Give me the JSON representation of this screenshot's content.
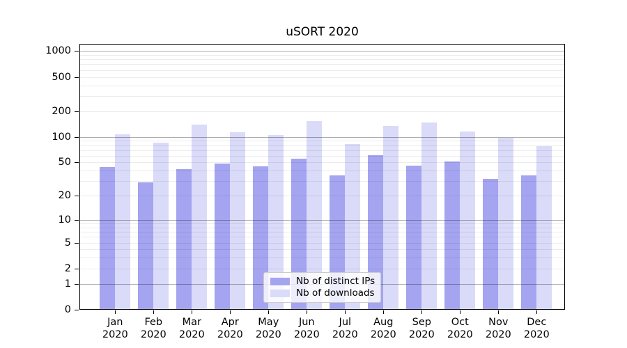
{
  "chart_data": {
    "type": "bar",
    "title": "uSORT 2020",
    "xlabel": "",
    "ylabel": "",
    "yscale": "log1p (symlog-like, 0 at baseline)",
    "ylim": [
      0,
      1210
    ],
    "y_ticks": [
      0,
      1,
      2,
      5,
      10,
      20,
      50,
      100,
      200,
      500,
      1000
    ],
    "grid_major_values": [
      1,
      10,
      100,
      1000
    ],
    "grid": "horizontal major + log-minor lines, drawn over bars",
    "legend_position": "lower center inside plot",
    "categories": [
      "Jan 2020",
      "Feb 2020",
      "Mar 2020",
      "Apr 2020",
      "May 2020",
      "Jun 2020",
      "Jul 2020",
      "Aug 2020",
      "Sep 2020",
      "Oct 2020",
      "Nov 2020",
      "Dec 2020"
    ],
    "series": [
      {
        "name": "Nb of distinct IPs",
        "key": "distinct-ips",
        "color": "#a4a4f1",
        "values": [
          44,
          29,
          42,
          49,
          45,
          55,
          35,
          61,
          46,
          51,
          32,
          35
        ]
      },
      {
        "name": "Nb of downloads",
        "key": "downloads",
        "color": "#dadaf9",
        "values": [
          107,
          85,
          139,
          113,
          105,
          152,
          82,
          134,
          148,
          115,
          97,
          78
        ]
      }
    ],
    "colors": {
      "spine": "#000000",
      "major_grid": "#adadad",
      "minor_grid": "#ececec",
      "background": "#ffffff"
    }
  }
}
